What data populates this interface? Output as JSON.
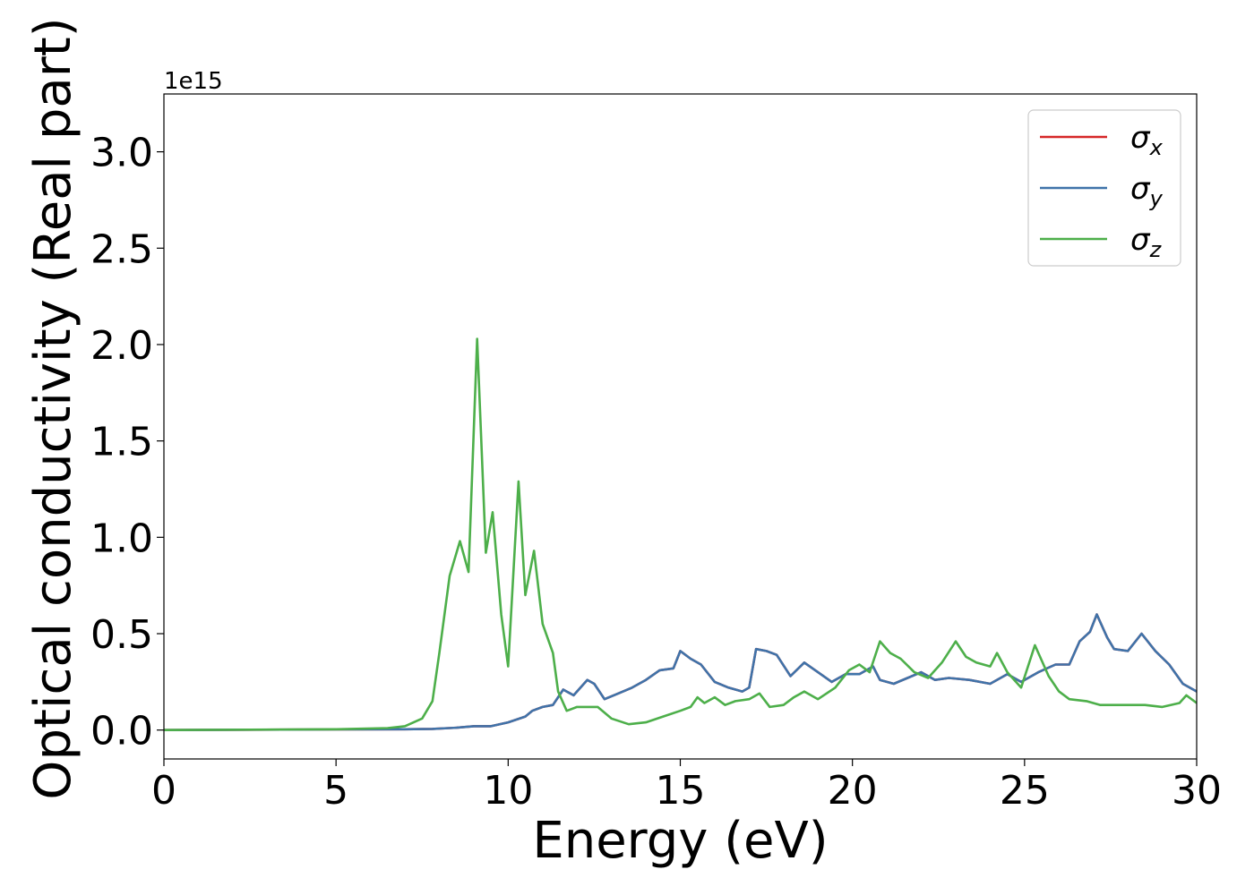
{
  "chart_data": {
    "type": "line",
    "xlabel": "Energy (eV)",
    "ylabel": "Optical conductivity (Real part)",
    "y_offset_label": "1e15",
    "xlim": [
      0,
      30
    ],
    "ylim": [
      -0.15,
      3.3
    ],
    "x_ticks": [
      0,
      5,
      10,
      15,
      20,
      25,
      30
    ],
    "y_ticks": [
      0.0,
      0.5,
      1.0,
      1.5,
      2.0,
      2.5,
      3.0
    ],
    "x_tick_labels": [
      "0",
      "5",
      "10",
      "15",
      "20",
      "25",
      "30"
    ],
    "y_tick_labels": [
      "0.0",
      "0.5",
      "1.0",
      "1.5",
      "2.0",
      "2.5",
      "3.0"
    ],
    "grid": false,
    "legend_position": "top-right",
    "series": [
      {
        "name": "σx",
        "legend_symbol": "σ",
        "legend_sub": "x",
        "color": "#d62728",
        "points": [
          [
            0,
            0
          ],
          [
            5,
            0.003
          ],
          [
            7,
            0.004
          ],
          [
            7.8,
            0.006
          ],
          [
            8.5,
            0.012
          ],
          [
            9,
            0.02
          ],
          [
            9.5,
            0.02
          ],
          [
            10,
            0.04
          ],
          [
            10.5,
            0.07
          ],
          [
            10.7,
            0.1
          ],
          [
            11,
            0.12
          ],
          [
            11.3,
            0.13
          ],
          [
            11.6,
            0.21
          ],
          [
            11.9,
            0.18
          ],
          [
            12.3,
            0.26
          ],
          [
            12.5,
            0.24
          ],
          [
            12.8,
            0.16
          ],
          [
            13.2,
            0.19
          ],
          [
            13.6,
            0.22
          ],
          [
            14,
            0.26
          ],
          [
            14.4,
            0.31
          ],
          [
            14.8,
            0.32
          ],
          [
            15,
            0.41
          ],
          [
            15.3,
            0.37
          ],
          [
            15.6,
            0.34
          ],
          [
            16,
            0.25
          ],
          [
            16.4,
            0.22
          ],
          [
            16.8,
            0.2
          ],
          [
            17,
            0.22
          ],
          [
            17.2,
            0.42
          ],
          [
            17.5,
            0.41
          ],
          [
            17.8,
            0.39
          ],
          [
            18.2,
            0.28
          ],
          [
            18.6,
            0.35
          ],
          [
            19,
            0.3
          ],
          [
            19.4,
            0.25
          ],
          [
            19.8,
            0.29
          ],
          [
            20.2,
            0.29
          ],
          [
            20.6,
            0.33
          ],
          [
            20.8,
            0.26
          ],
          [
            21.2,
            0.24
          ],
          [
            21.6,
            0.27
          ],
          [
            22,
            0.3
          ],
          [
            22.4,
            0.26
          ],
          [
            22.8,
            0.27
          ],
          [
            23.4,
            0.26
          ],
          [
            24,
            0.24
          ],
          [
            24.5,
            0.29
          ],
          [
            24.9,
            0.25
          ],
          [
            25.4,
            0.3
          ],
          [
            25.9,
            0.34
          ],
          [
            26.3,
            0.34
          ],
          [
            26.6,
            0.46
          ],
          [
            26.9,
            0.51
          ],
          [
            27.1,
            0.6
          ],
          [
            27.4,
            0.48
          ],
          [
            27.6,
            0.42
          ],
          [
            28,
            0.41
          ],
          [
            28.4,
            0.5
          ],
          [
            28.8,
            0.41
          ],
          [
            29.2,
            0.34
          ],
          [
            29.6,
            0.24
          ],
          [
            30,
            0.2
          ]
        ]
      },
      {
        "name": "σy",
        "legend_symbol": "σ",
        "legend_sub": "y",
        "color": "#3f73a9",
        "points": [
          [
            0,
            0
          ],
          [
            5,
            0.003
          ],
          [
            7,
            0.004
          ],
          [
            7.8,
            0.006
          ],
          [
            8.5,
            0.012
          ],
          [
            9,
            0.02
          ],
          [
            9.5,
            0.02
          ],
          [
            10,
            0.04
          ],
          [
            10.5,
            0.07
          ],
          [
            10.7,
            0.1
          ],
          [
            11,
            0.12
          ],
          [
            11.3,
            0.13
          ],
          [
            11.6,
            0.21
          ],
          [
            11.9,
            0.18
          ],
          [
            12.3,
            0.26
          ],
          [
            12.5,
            0.24
          ],
          [
            12.8,
            0.16
          ],
          [
            13.2,
            0.19
          ],
          [
            13.6,
            0.22
          ],
          [
            14,
            0.26
          ],
          [
            14.4,
            0.31
          ],
          [
            14.8,
            0.32
          ],
          [
            15,
            0.41
          ],
          [
            15.3,
            0.37
          ],
          [
            15.6,
            0.34
          ],
          [
            16,
            0.25
          ],
          [
            16.4,
            0.22
          ],
          [
            16.8,
            0.2
          ],
          [
            17,
            0.22
          ],
          [
            17.2,
            0.42
          ],
          [
            17.5,
            0.41
          ],
          [
            17.8,
            0.39
          ],
          [
            18.2,
            0.28
          ],
          [
            18.6,
            0.35
          ],
          [
            19,
            0.3
          ],
          [
            19.4,
            0.25
          ],
          [
            19.8,
            0.29
          ],
          [
            20.2,
            0.29
          ],
          [
            20.6,
            0.33
          ],
          [
            20.8,
            0.26
          ],
          [
            21.2,
            0.24
          ],
          [
            21.6,
            0.27
          ],
          [
            22,
            0.3
          ],
          [
            22.4,
            0.26
          ],
          [
            22.8,
            0.27
          ],
          [
            23.4,
            0.26
          ],
          [
            24,
            0.24
          ],
          [
            24.5,
            0.29
          ],
          [
            24.9,
            0.25
          ],
          [
            25.4,
            0.3
          ],
          [
            25.9,
            0.34
          ],
          [
            26.3,
            0.34
          ],
          [
            26.6,
            0.46
          ],
          [
            26.9,
            0.51
          ],
          [
            27.1,
            0.6
          ],
          [
            27.4,
            0.48
          ],
          [
            27.6,
            0.42
          ],
          [
            28,
            0.41
          ],
          [
            28.4,
            0.5
          ],
          [
            28.8,
            0.41
          ],
          [
            29.2,
            0.34
          ],
          [
            29.6,
            0.24
          ],
          [
            30,
            0.2
          ]
        ]
      },
      {
        "name": "σz",
        "legend_symbol": "σ",
        "legend_sub": "z",
        "color": "#4daf4a",
        "points": [
          [
            0,
            0
          ],
          [
            5,
            0.004
          ],
          [
            6.5,
            0.01
          ],
          [
            7,
            0.02
          ],
          [
            7.5,
            0.06
          ],
          [
            7.8,
            0.15
          ],
          [
            8,
            0.4
          ],
          [
            8.3,
            0.8
          ],
          [
            8.6,
            0.98
          ],
          [
            8.85,
            0.82
          ],
          [
            9.1,
            2.03
          ],
          [
            9.35,
            0.92
          ],
          [
            9.55,
            1.13
          ],
          [
            9.8,
            0.6
          ],
          [
            10,
            0.33
          ],
          [
            10.3,
            1.29
          ],
          [
            10.5,
            0.7
          ],
          [
            10.75,
            0.93
          ],
          [
            11,
            0.55
          ],
          [
            11.3,
            0.4
          ],
          [
            11.45,
            0.2
          ],
          [
            11.7,
            0.1
          ],
          [
            12,
            0.12
          ],
          [
            12.6,
            0.12
          ],
          [
            13,
            0.06
          ],
          [
            13.5,
            0.03
          ],
          [
            14,
            0.04
          ],
          [
            14.5,
            0.07
          ],
          [
            15,
            0.1
          ],
          [
            15.3,
            0.12
          ],
          [
            15.5,
            0.17
          ],
          [
            15.7,
            0.14
          ],
          [
            16,
            0.17
          ],
          [
            16.3,
            0.13
          ],
          [
            16.6,
            0.15
          ],
          [
            17,
            0.16
          ],
          [
            17.3,
            0.19
          ],
          [
            17.6,
            0.12
          ],
          [
            18,
            0.13
          ],
          [
            18.3,
            0.17
          ],
          [
            18.6,
            0.2
          ],
          [
            19,
            0.16
          ],
          [
            19.5,
            0.22
          ],
          [
            19.9,
            0.31
          ],
          [
            20.2,
            0.34
          ],
          [
            20.5,
            0.3
          ],
          [
            20.8,
            0.46
          ],
          [
            21.1,
            0.4
          ],
          [
            21.4,
            0.37
          ],
          [
            21.8,
            0.3
          ],
          [
            22.2,
            0.27
          ],
          [
            22.6,
            0.35
          ],
          [
            23,
            0.46
          ],
          [
            23.3,
            0.38
          ],
          [
            23.6,
            0.35
          ],
          [
            24,
            0.33
          ],
          [
            24.2,
            0.4
          ],
          [
            24.5,
            0.3
          ],
          [
            24.9,
            0.22
          ],
          [
            25.3,
            0.44
          ],
          [
            25.7,
            0.28
          ],
          [
            26,
            0.2
          ],
          [
            26.3,
            0.16
          ],
          [
            26.8,
            0.15
          ],
          [
            27.2,
            0.13
          ],
          [
            28,
            0.13
          ],
          [
            28.5,
            0.13
          ],
          [
            29,
            0.12
          ],
          [
            29.5,
            0.14
          ],
          [
            29.7,
            0.18
          ],
          [
            30,
            0.14
          ]
        ]
      }
    ]
  }
}
